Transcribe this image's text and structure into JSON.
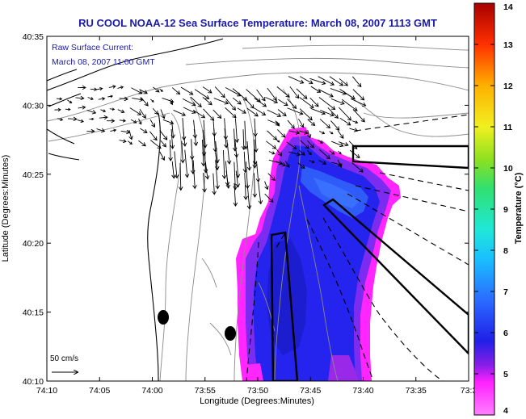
{
  "chart_data": {
    "type": "heatmap",
    "title": "RU COOL  NOAA-12  Sea Surface Temperature:  March 08, 2007 1113 GMT",
    "xlabel": "Longitude (Degrees:Minutes)",
    "ylabel": "Latitude (Degrees:Minutes)",
    "x_ticks": [
      "74:10",
      "74:05",
      "74:00",
      "73:55",
      "73:50",
      "73:45",
      "73:40",
      "73:35",
      "73:3"
    ],
    "y_ticks": [
      "40:10",
      "40:15",
      "40:20",
      "40:25",
      "40:30",
      "40:35"
    ],
    "colorbar": {
      "label": "Temperature (°C)",
      "ticks": [
        "4",
        "5",
        "6",
        "7",
        "8",
        "9",
        "10",
        "11",
        "12",
        "13",
        "14"
      ],
      "range": [
        4,
        14
      ]
    },
    "annotations": {
      "current_label": "Raw Surface Current:",
      "current_time": "March 08, 2007 11:00 GMT",
      "scale_label": "50 cm/s"
    },
    "colors": {
      "title": "#1a1aa8",
      "annotation": "#1a1aa8",
      "sst_cold": "#2222ee",
      "sst_edge": "#ff22ff"
    }
  }
}
